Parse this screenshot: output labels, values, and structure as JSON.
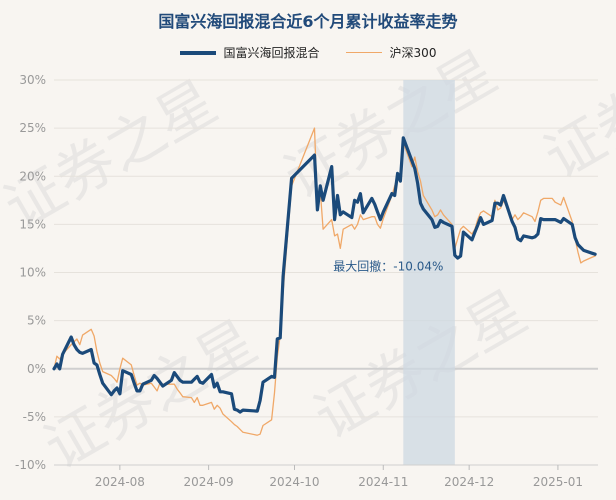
{
  "chart_data": {
    "type": "line",
    "title": "国富兴海回报混合近6个月累计收益率走势",
    "watermark": "证券之星",
    "xlabel": "",
    "ylabel": "",
    "x_ticks": [
      "2024-08",
      "2024-09",
      "2024-10",
      "2024-11",
      "2024-12",
      "2025-01"
    ],
    "x_tick_dates": [
      "2024-08-01",
      "2024-09-01",
      "2024-10-01",
      "2024-11-01",
      "2024-12-01",
      "2025-01-01"
    ],
    "y_ticks": [
      "30%",
      "25%",
      "20%",
      "15%",
      "10%",
      "5%",
      "0%",
      "-5%",
      "-10%"
    ],
    "y_tick_values": [
      30,
      25,
      20,
      15,
      10,
      5,
      0,
      -5,
      -10
    ],
    "ylim": [
      -10,
      30
    ],
    "xlim": [
      "2024-07-09",
      "2025-01-15"
    ],
    "grid": "horizontal",
    "legend_position": "top-center",
    "x": [
      "2024-07-09",
      "2024-07-10",
      "2024-07-11",
      "2024-07-12",
      "2024-07-15",
      "2024-07-16",
      "2024-07-17",
      "2024-07-18",
      "2024-07-19",
      "2024-07-22",
      "2024-07-23",
      "2024-07-24",
      "2024-07-25",
      "2024-07-26",
      "2024-07-29",
      "2024-07-30",
      "2024-07-31",
      "2024-08-01",
      "2024-08-02",
      "2024-08-05",
      "2024-08-06",
      "2024-08-07",
      "2024-08-08",
      "2024-08-09",
      "2024-08-12",
      "2024-08-13",
      "2024-08-14",
      "2024-08-15",
      "2024-08-16",
      "2024-08-19",
      "2024-08-20",
      "2024-08-21",
      "2024-08-22",
      "2024-08-23",
      "2024-08-26",
      "2024-08-27",
      "2024-08-28",
      "2024-08-29",
      "2024-08-30",
      "2024-09-02",
      "2024-09-03",
      "2024-09-04",
      "2024-09-05",
      "2024-09-06",
      "2024-09-09",
      "2024-09-10",
      "2024-09-11",
      "2024-09-12",
      "2024-09-13",
      "2024-09-18",
      "2024-09-19",
      "2024-09-20",
      "2024-09-23",
      "2024-09-24",
      "2024-09-25",
      "2024-09-26",
      "2024-09-27",
      "2024-09-30",
      "2024-10-08",
      "2024-10-09",
      "2024-10-10",
      "2024-10-11",
      "2024-10-14",
      "2024-10-15",
      "2024-10-16",
      "2024-10-17",
      "2024-10-18",
      "2024-10-21",
      "2024-10-22",
      "2024-10-23",
      "2024-10-24",
      "2024-10-25",
      "2024-10-28",
      "2024-10-29",
      "2024-10-30",
      "2024-10-31",
      "2024-11-01",
      "2024-11-04",
      "2024-11-05",
      "2024-11-06",
      "2024-11-07",
      "2024-11-08",
      "2024-11-11",
      "2024-11-12",
      "2024-11-13",
      "2024-11-14",
      "2024-11-15",
      "2024-11-18",
      "2024-11-19",
      "2024-11-20",
      "2024-11-21",
      "2024-11-22",
      "2024-11-25",
      "2024-11-26",
      "2024-11-27",
      "2024-11-28",
      "2024-11-29",
      "2024-12-02",
      "2024-12-03",
      "2024-12-04",
      "2024-12-05",
      "2024-12-06",
      "2024-12-09",
      "2024-12-10",
      "2024-12-11",
      "2024-12-12",
      "2024-12-13",
      "2024-12-16",
      "2024-12-17",
      "2024-12-18",
      "2024-12-19",
      "2024-12-20",
      "2024-12-23",
      "2024-12-24",
      "2024-12-25",
      "2024-12-26",
      "2024-12-27",
      "2024-12-30",
      "2024-12-31",
      "2025-01-02",
      "2025-01-03",
      "2025-01-06",
      "2025-01-07",
      "2025-01-08",
      "2025-01-09",
      "2025-01-10",
      "2025-01-13",
      "2025-01-14"
    ],
    "series": [
      {
        "name": "国富兴海回报混合",
        "color": "#1b4a7a",
        "values": [
          0.0,
          0.5,
          0.0,
          1.5,
          3.3,
          2.5,
          2.0,
          1.7,
          1.6,
          2.0,
          0.6,
          0.4,
          -0.6,
          -1.5,
          -2.7,
          -2.3,
          -2.0,
          -2.6,
          -0.2,
          -0.6,
          -1.5,
          -2.3,
          -2.3,
          -1.6,
          -1.2,
          -0.7,
          -1.0,
          -1.4,
          -1.8,
          -1.2,
          -0.4,
          -0.8,
          -1.2,
          -1.4,
          -1.4,
          -1.1,
          -0.8,
          -1.4,
          -1.5,
          -0.6,
          -1.9,
          -1.5,
          -2.4,
          -2.4,
          -2.6,
          -4.2,
          -4.3,
          -4.5,
          -4.3,
          -4.4,
          -3.3,
          -1.4,
          -0.8,
          -0.9,
          3.1,
          3.2,
          9.6,
          19.8,
          22.2,
          16.5,
          19.0,
          17.5,
          21.0,
          15.5,
          18.0,
          16.0,
          16.3,
          15.7,
          17.5,
          17.3,
          18.2,
          16.2,
          17.7,
          17.1,
          16.3,
          15.5,
          16.3,
          18.2,
          18.0,
          20.3,
          19.5,
          24.0,
          21.6,
          20.8,
          19.3,
          17.2,
          16.6,
          15.5,
          14.7,
          14.8,
          15.4,
          15.2,
          14.8,
          11.8,
          11.5,
          11.7,
          14.2,
          13.4,
          14.2,
          14.9,
          15.7,
          15.0,
          15.4,
          17.2,
          17.2,
          17.0,
          18.0,
          15.3,
          14.7,
          13.5,
          13.3,
          13.8,
          13.6,
          13.7,
          14.0,
          15.6,
          15.5,
          15.5,
          15.5,
          15.2,
          15.6,
          15.0,
          13.6,
          12.9,
          12.6,
          12.3,
          12.0,
          11.9
        ]
      },
      {
        "name": "沪深300",
        "color": "#f0a868",
        "values": [
          0.0,
          1.3,
          1.0,
          1.5,
          2.5,
          2.8,
          3.1,
          2.5,
          3.5,
          4.1,
          3.4,
          1.8,
          0.6,
          -0.3,
          -0.7,
          -1.0,
          -1.4,
          0.0,
          1.1,
          0.4,
          -0.7,
          -1.7,
          -1.5,
          -1.7,
          -1.5,
          -1.9,
          -2.3,
          -1.5,
          -1.6,
          -1.6,
          -1.6,
          -2.1,
          -2.5,
          -2.9,
          -3.0,
          -3.5,
          -3.0,
          -3.8,
          -3.8,
          -3.5,
          -4.2,
          -3.8,
          -4.1,
          -4.7,
          -5.5,
          -5.8,
          -6.0,
          -6.3,
          -6.6,
          -6.9,
          -6.8,
          -5.9,
          -5.3,
          -2.5,
          1.2,
          3.5,
          8.0,
          19.0,
          25.0,
          17.0,
          18.5,
          14.5,
          15.5,
          13.8,
          14.0,
          12.5,
          14.5,
          15.0,
          14.5,
          15.0,
          16.0,
          15.5,
          15.8,
          15.8,
          15.0,
          14.6,
          15.6,
          18.0,
          19.0,
          20.0,
          19.5,
          23.5,
          21.0,
          22.0,
          20.5,
          19.5,
          18.0,
          16.5,
          15.8,
          16.0,
          16.5,
          16.0,
          15.0,
          12.5,
          13.5,
          14.5,
          14.8,
          14.0,
          14.5,
          15.5,
          16.2,
          16.4,
          15.8,
          17.5,
          16.5,
          16.7,
          17.5,
          15.5,
          16.0,
          15.5,
          15.8,
          16.2,
          15.8,
          15.3,
          16.3,
          17.5,
          17.7,
          17.7,
          17.3,
          17.0,
          17.8,
          15.3,
          13.5,
          12.1,
          11.0,
          11.2,
          11.6,
          11.7
        ]
      }
    ],
    "annotations": [
      {
        "text": "最大回撤：-10.04%",
        "type": "shaded-range",
        "x_start": "2024-11-08",
        "x_end": "2024-11-26",
        "shade_color": "#cdd8e2"
      }
    ]
  },
  "legend": {
    "fund_label": "国富兴海回报混合",
    "index_label": "沪深300"
  }
}
